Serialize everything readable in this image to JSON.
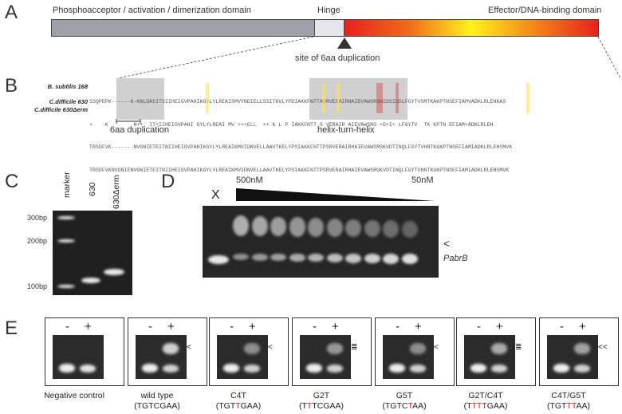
{
  "panels": {
    "a": "A",
    "b": "B",
    "c": "C",
    "d": "D",
    "e": "E"
  },
  "panel_a": {
    "domain_left": "Phosphoacceptor / activation / dimerization domain",
    "hinge": "Hinge",
    "domain_right": "Effector/DNA-binding domain",
    "site_label": "site of 6aa duplication"
  },
  "panel_b": {
    "strain1": "B. subtilis 168",
    "strain2": "C.difficile 630",
    "strain3": "C.difficile 630Δerm",
    "seq1": "SSQPEPK------K-KNLDASITSIIHEIGVPAHIKGYLYLREAISMVYNDIELLSSITKVLYPDIAKKFNTTASRVERAIRHAIEVAWSRGNIDSISSLFGYTVSMTKAKPTNSEFIAMVADKLRLEHKAS",
    "cons": "+    K        N++  IT+IIHEIGVPAHI GYLYLREAI MV +++ELL  ++ K L P IAKKFNTT S VERAIR AIEVAWSRG +D+I+ LFGYTV  TK KPTN EFIAM+ADKLRLEH",
    "seq2": "TRSDFVK-------NVGNIETEITNIIHEIGVPAHIKGYLYLREAIKMVIDNVELLAAVTKELYPSIAKKFNTTPSRVERAIRHAIEVAWSRGKVDTINQLFGYTVHNTKGKPTNSEFIAMIADKLRLEHSMVK",
    "seq3": "TRSDFVKNVGNIENVGNIETEITNIIHEIGVPAHIKGYLYLREAIKMVIDNVELLAAVTKELYPSIAKKFNTTPSRVERAIRHAIEVAWSRGKVDTINQLFGYTVHNTKGKPTNSEFIAMIADKLRLEHSMVK",
    "dup_label": "6aa duplication",
    "hth_label": "helix-turn-helix"
  },
  "panel_c": {
    "lane_labels": [
      "marker",
      "630",
      "630Δerm"
    ],
    "markers": [
      "300bp",
      "200bp",
      "100bp"
    ]
  },
  "panel_d": {
    "x_label": "X",
    "conc_high": "500nM",
    "conc_low": "50nM",
    "shift_marker": "<",
    "probe_label": "PabrB"
  },
  "panel_e": {
    "lane_minus": "-",
    "lane_plus": "+",
    "blots": [
      {
        "name": "Negative control",
        "seq": ""
      },
      {
        "name": "wild type",
        "seq": "(TGTCGAA)"
      },
      {
        "name": "C4T",
        "seq_pre": "(TGT",
        "seq_mut": "T",
        "seq_post": "GAA)"
      },
      {
        "name": "G2T",
        "seq_pre": "(T",
        "seq_mut": "T",
        "seq_post": "TCGAA)"
      },
      {
        "name": "G5T",
        "seq_pre": "(TGTC",
        "seq_mut": "T",
        "seq_post": "AA)"
      },
      {
        "name": "G2T/C4T",
        "seq_pre": "(T",
        "seq_mut": "TTT",
        "seq_post": "GAA)"
      },
      {
        "name": "C4T/G5T",
        "seq_pre": "(TGT",
        "seq_mut": "TT",
        "seq_post": "AA)"
      }
    ],
    "arrows": [
      "",
      "<",
      "<",
      "≣",
      "<",
      "≣",
      "<<"
    ]
  },
  "colors": {
    "gradient_start": "#e8211c",
    "gradient_mid": "#fff21a",
    "gradient_end": "#e8211c",
    "grey_domain": "#a0a0a8",
    "hinge": "#e6e6ea"
  }
}
